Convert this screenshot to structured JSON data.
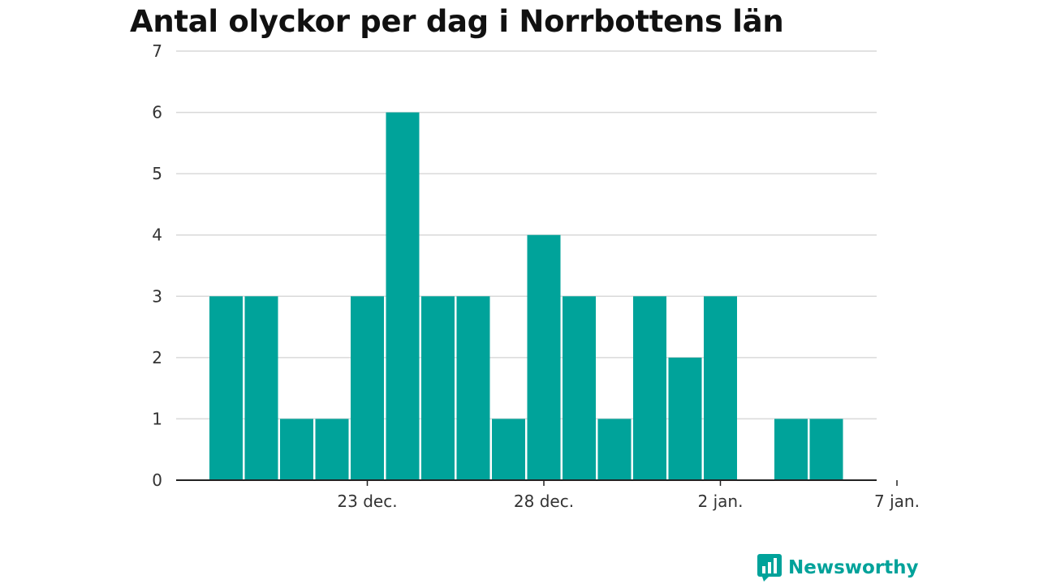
{
  "colors": {
    "bar": "#00a39a",
    "grid": "#d9d9d9",
    "axis": "#222222",
    "brand": "#00a29a"
  },
  "brand": {
    "name": "Newsworthy",
    "icon": "newsworthy-bar-chart-icon"
  },
  "chart_data": {
    "type": "bar",
    "title": "Antal olyckor per dag i Norrbottens län",
    "xlabel": "",
    "ylabel": "",
    "x_axis": "date",
    "ylim": [
      0,
      7
    ],
    "yticks": [
      0,
      1,
      2,
      3,
      4,
      5,
      6,
      7
    ],
    "grid": true,
    "x": [
      "2023-12-19",
      "2023-12-20",
      "2023-12-21",
      "2023-12-22",
      "2023-12-23",
      "2023-12-24",
      "2023-12-25",
      "2023-12-26",
      "2023-12-27",
      "2023-12-28",
      "2023-12-29",
      "2023-12-30",
      "2023-12-31",
      "2024-01-01",
      "2024-01-02",
      "2024-01-03",
      "2024-01-04",
      "2024-01-05",
      "2024-01-06"
    ],
    "values": [
      3,
      3,
      1,
      1,
      3,
      6,
      3,
      3,
      1,
      4,
      3,
      1,
      3,
      2,
      3,
      0,
      1,
      1,
      0
    ],
    "xticks": [
      {
        "date": "2023-12-23",
        "label": "23 dec."
      },
      {
        "date": "2023-12-28",
        "label": "28 dec."
      },
      {
        "date": "2024-01-02",
        "label": "2 jan."
      },
      {
        "date": "2024-01-07",
        "label": "7 jan."
      }
    ]
  }
}
